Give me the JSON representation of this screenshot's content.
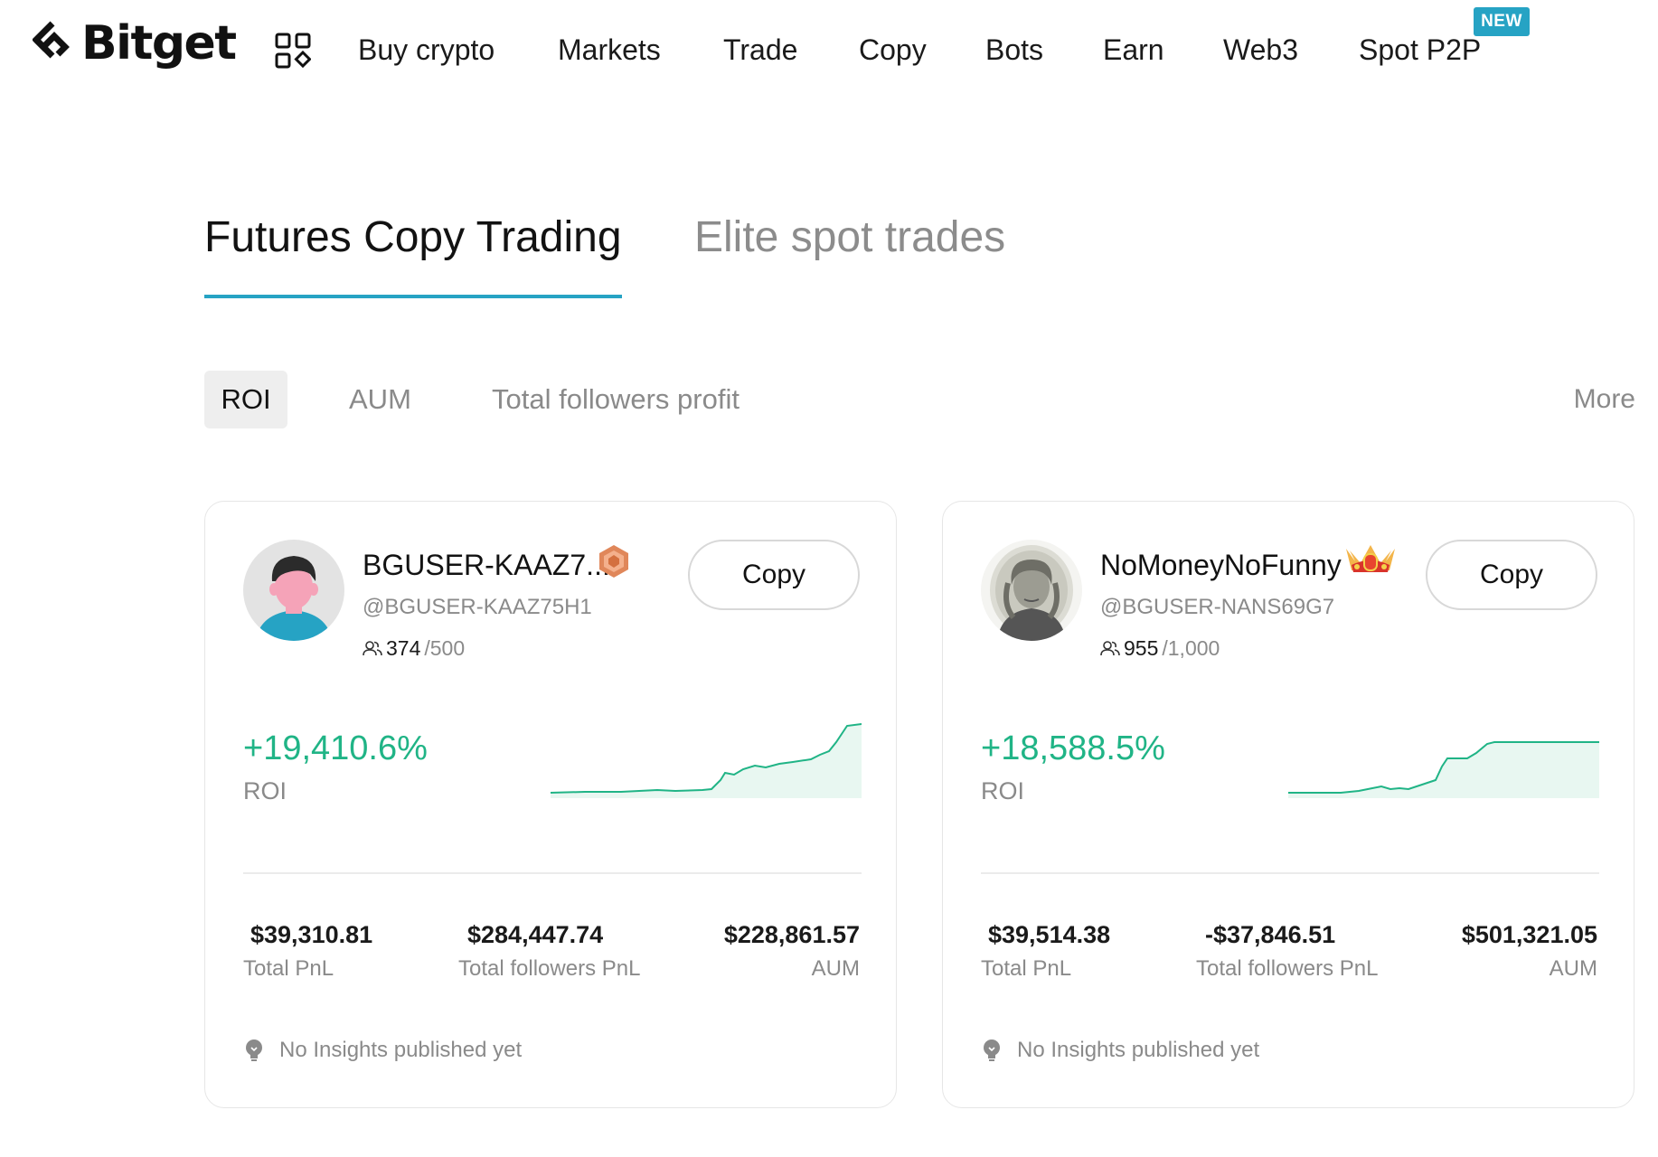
{
  "brand": {
    "name": "Bitget"
  },
  "nav": {
    "items": [
      "Buy crypto",
      "Markets",
      "Trade",
      "Copy",
      "Bots",
      "Earn",
      "Web3",
      "Spot P2P"
    ],
    "badge": "NEW"
  },
  "tabs": {
    "primary": "Futures Copy Trading",
    "secondary": "Elite spot trades"
  },
  "filters": {
    "chips": [
      "ROI",
      "AUM",
      "Total followers profit"
    ],
    "more": "More"
  },
  "colors": {
    "accent": "#26a3c4",
    "positive": "#20b486",
    "muted": "#8a8a8a"
  },
  "cards": [
    {
      "name": "BGUSER-KAAZ7...",
      "badge_icon": "bronze-hexagon-badge",
      "handle": "@BGUSER-KAAZ75H1",
      "followers": "374",
      "followers_max": "/500",
      "copy_label": "Copy",
      "roi": "+19,410.6%",
      "roi_label": "ROI",
      "total_pnl": "$39,310.81",
      "total_pnl_label": "Total PnL",
      "followers_pnl": "$284,447.74",
      "followers_pnl_label": "Total followers PnL",
      "aum": "$228,861.57",
      "aum_label": "AUM",
      "insights": "No Insights published yet"
    },
    {
      "name": "NoMoneyNoFunny",
      "badge_icon": "crown-icon",
      "handle": "@BGUSER-NANS69G7",
      "followers": "955",
      "followers_max": "/1,000",
      "copy_label": "Copy",
      "roi": "+18,588.5%",
      "roi_label": "ROI",
      "total_pnl": "$39,514.38",
      "total_pnl_label": "Total PnL",
      "followers_pnl": "-$37,846.51",
      "followers_pnl_label": "Total followers PnL",
      "aum": "$501,321.05",
      "aum_label": "AUM",
      "insights": "No Insights published yet"
    }
  ]
}
